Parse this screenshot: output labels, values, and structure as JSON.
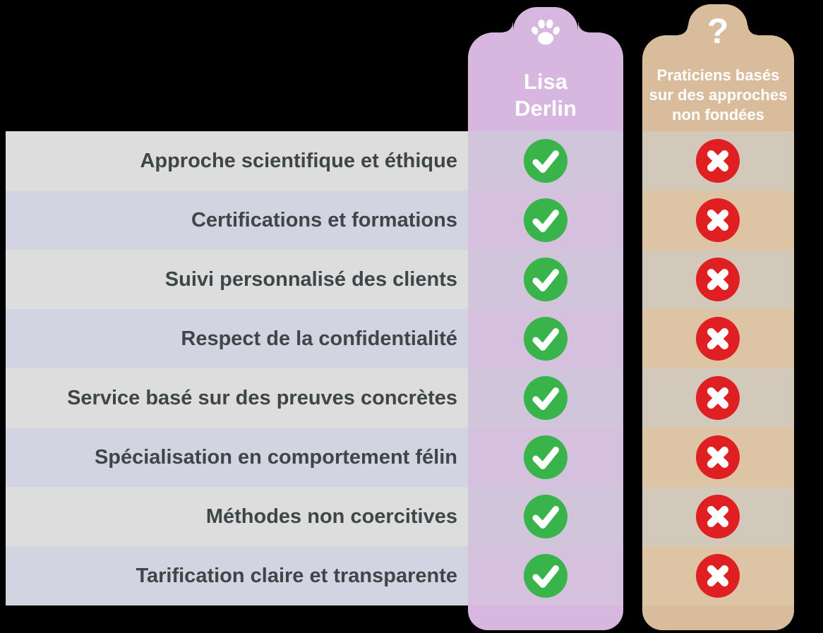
{
  "colors": {
    "background": "#000000",
    "row_odd": "#DDDDDD",
    "row_even": "#D2D4E1",
    "label_text": "#3F4648",
    "lisa_column": "#D7B6E0",
    "lisa_row_odd": "#D1C5DB",
    "lisa_row_even": "#D5C0DE",
    "others_column": "#D9BC9B",
    "others_row_odd": "#D3C9BA",
    "others_row_even": "#DCC4A4",
    "check_green": "#39B44A",
    "cross_red": "#E01F22",
    "icon_white": "#FFFFFF"
  },
  "columns": {
    "lisa": {
      "title": "Lisa\nDerlin",
      "icon": "paw-icon",
      "mark": "check"
    },
    "others": {
      "title": "Praticiens basés\nsur des approches\nnon fondées",
      "icon": "question-mark-icon",
      "icon_glyph": "?",
      "mark": "cross"
    }
  },
  "table": {
    "rows": [
      {
        "label": "Approche scientifique et éthique",
        "lisa": "check",
        "others": "cross"
      },
      {
        "label": "Certifications et formations",
        "lisa": "check",
        "others": "cross"
      },
      {
        "label": "Suivi personnalisé des clients",
        "lisa": "check",
        "others": "cross"
      },
      {
        "label": "Respect de la confidentialité",
        "lisa": "check",
        "others": "cross"
      },
      {
        "label": "Service basé sur des preuves concrètes",
        "lisa": "check",
        "others": "cross"
      },
      {
        "label": "Spécialisation en comportement félin",
        "lisa": "check",
        "others": "cross"
      },
      {
        "label": "Méthodes non coercitives",
        "lisa": "check",
        "others": "cross"
      },
      {
        "label": "Tarification claire et transparente",
        "lisa": "check",
        "others": "cross"
      }
    ]
  },
  "chart_data": {
    "type": "table",
    "title": "",
    "columns": [
      "Lisa Derlin",
      "Praticiens basés sur des approches non fondées"
    ],
    "row_labels": [
      "Approche scientifique et éthique",
      "Certifications et formations",
      "Suivi personnalisé des clients",
      "Respect de la confidentialité",
      "Service basé sur des preuves concrètes",
      "Spécialisation en comportement félin",
      "Méthodes non coercitives",
      "Tarification claire et transparente"
    ],
    "values": [
      [
        "check",
        "cross"
      ],
      [
        "check",
        "cross"
      ],
      [
        "check",
        "cross"
      ],
      [
        "check",
        "cross"
      ],
      [
        "check",
        "cross"
      ],
      [
        "check",
        "cross"
      ],
      [
        "check",
        "cross"
      ],
      [
        "check",
        "cross"
      ]
    ],
    "legend_position": "none",
    "grid": false
  }
}
